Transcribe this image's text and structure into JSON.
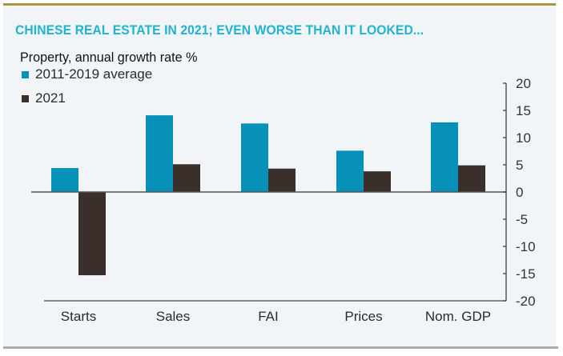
{
  "colors": {
    "avg": "#0891b8",
    "y2021": "#3a2f2b",
    "title": "#1fb3d2",
    "gold_rule": "#a8973f",
    "gray_rule": "#a7afb3"
  },
  "chart_data": {
    "type": "bar",
    "title": "CHINESE REAL ESTATE IN 2021; EVEN WORSE THAN IT LOOKED...",
    "subtitle": "Property, annual growth rate %",
    "xlabel": "",
    "ylabel": "",
    "categories": [
      "Starts",
      "Sales",
      "FAI",
      "Prices",
      "Nom. GDP"
    ],
    "series": [
      {
        "name": "2011-2019 average",
        "values": [
          4.4,
          14.1,
          12.6,
          7.6,
          12.8
        ]
      },
      {
        "name": "2021",
        "values": [
          -15.3,
          5.1,
          4.3,
          3.8,
          4.9
        ]
      }
    ],
    "ylim": [
      -20,
      20
    ],
    "yticks": [
      20,
      15,
      10,
      5,
      0,
      -5,
      -10,
      -15,
      -20
    ],
    "ytick_labels": [
      "20",
      "15",
      "10",
      "5",
      "0",
      "-5",
      "-10",
      "-15",
      "-20"
    ],
    "y_axis_side": "right",
    "legend_position": "top-left",
    "grid": false
  }
}
